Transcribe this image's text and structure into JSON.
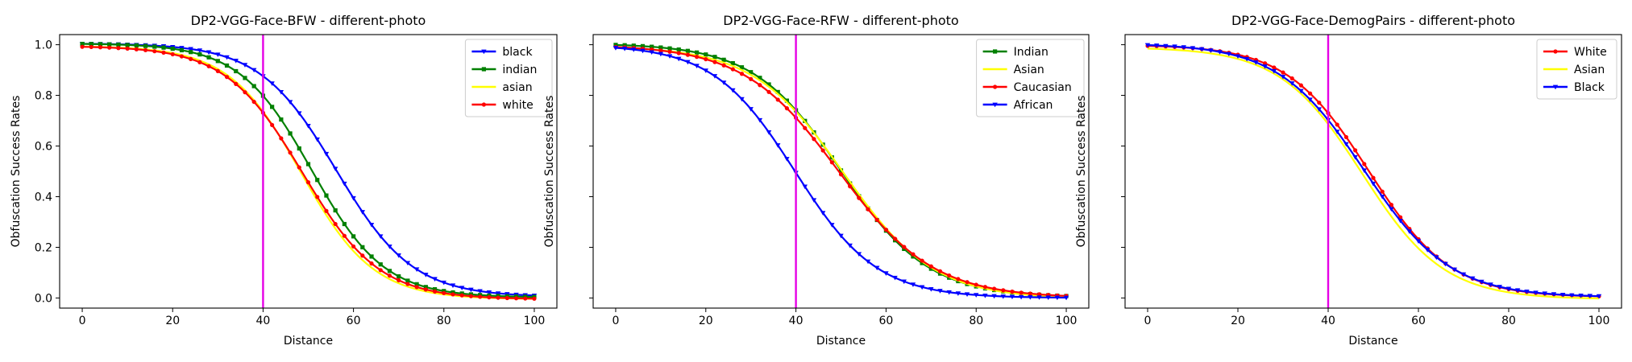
{
  "chart_data": [
    {
      "type": "line",
      "title": "DP2-VGG-Face-BFW - different-photo",
      "xlabel": "Distance",
      "ylabel": "Obfuscation Success Rates",
      "xlim": [
        -5,
        105
      ],
      "ylim": [
        -0.04,
        1.04
      ],
      "xticks": [
        0,
        20,
        40,
        60,
        80,
        100
      ],
      "yticks": [
        0.0,
        0.2,
        0.4,
        0.6,
        0.8,
        1.0
      ],
      "ytick_labels": [
        "0.0",
        "0.2",
        "0.4",
        "0.6",
        "0.8",
        "1.0"
      ],
      "vline": {
        "x": 40,
        "color": "#e600e6"
      },
      "legend": "top-right",
      "series": [
        {
          "name": "black",
          "color": "#0000ff",
          "marker": "triangle-down",
          "midpoint": 56.2,
          "steepness": 0.118,
          "high": 1.005,
          "low": 0.004
        },
        {
          "name": "indian",
          "color": "#008000",
          "marker": "square",
          "midpoint": 50.8,
          "steepness": 0.125,
          "high": 1.005,
          "low": 0.002
        },
        {
          "name": "asian",
          "color": "#ffff00",
          "marker": "none",
          "midpoint": 48.4,
          "steepness": 0.125,
          "high": 0.995,
          "low": -0.005
        },
        {
          "name": "white",
          "color": "#ff0000",
          "marker": "dot",
          "midpoint": 48.7,
          "steepness": 0.118,
          "high": 0.995,
          "low": -0.005
        }
      ]
    },
    {
      "type": "line",
      "title": "DP2-VGG-Face-RFW - different-photo",
      "xlabel": "Distance",
      "ylabel": "Obfuscation Success Rates",
      "xlim": [
        -5,
        105
      ],
      "ylim": [
        -0.04,
        1.04
      ],
      "xticks": [
        0,
        20,
        40,
        60,
        80,
        100
      ],
      "yticks": [
        0.0,
        0.2,
        0.4,
        0.6,
        0.8,
        1.0
      ],
      "ytick_labels": [],
      "vline": {
        "x": 40,
        "color": "#e600e6"
      },
      "legend": "top-right",
      "series": [
        {
          "name": "Indian",
          "color": "#008000",
          "marker": "square",
          "midpoint": 50.0,
          "steepness": 0.103,
          "high": 1.005,
          "low": 0.002
        },
        {
          "name": "Asian",
          "color": "#ffff00",
          "marker": "none",
          "midpoint": 50.5,
          "steepness": 0.1,
          "high": 0.995,
          "low": -0.004
        },
        {
          "name": "Caucasian",
          "color": "#ff0000",
          "marker": "dot",
          "midpoint": 49.5,
          "steepness": 0.095,
          "high": 1.0,
          "low": 0.0
        },
        {
          "name": "African",
          "color": "#0000ff",
          "marker": "triangle-down",
          "midpoint": 39.8,
          "steepness": 0.11,
          "high": 1.0,
          "low": 0.0
        }
      ]
    },
    {
      "type": "line",
      "title": "DP2-VGG-Face-DemogPairs - different-photo",
      "xlabel": "Distance",
      "ylabel": "Obfuscation Success Rates",
      "xlim": [
        -5,
        105
      ],
      "ylim": [
        -0.04,
        1.04
      ],
      "xticks": [
        0,
        20,
        40,
        60,
        80,
        100
      ],
      "yticks": [
        0.0,
        0.2,
        0.4,
        0.6,
        0.8,
        1.0
      ],
      "ytick_labels": [],
      "vline": {
        "x": 40,
        "color": "#e600e6"
      },
      "legend": "top-right",
      "series": [
        {
          "name": "White",
          "color": "#ff0000",
          "marker": "dot",
          "midpoint": 49.0,
          "steepness": 0.11,
          "high": 1.0,
          "low": 0.003
        },
        {
          "name": "Asian",
          "color": "#ffff00",
          "marker": "none",
          "midpoint": 47.5,
          "steepness": 0.11,
          "high": 0.99,
          "low": -0.005
        },
        {
          "name": "Black",
          "color": "#0000ff",
          "marker": "triangle-down",
          "midpoint": 48.0,
          "steepness": 0.105,
          "high": 1.005,
          "low": 0.003
        }
      ]
    }
  ]
}
